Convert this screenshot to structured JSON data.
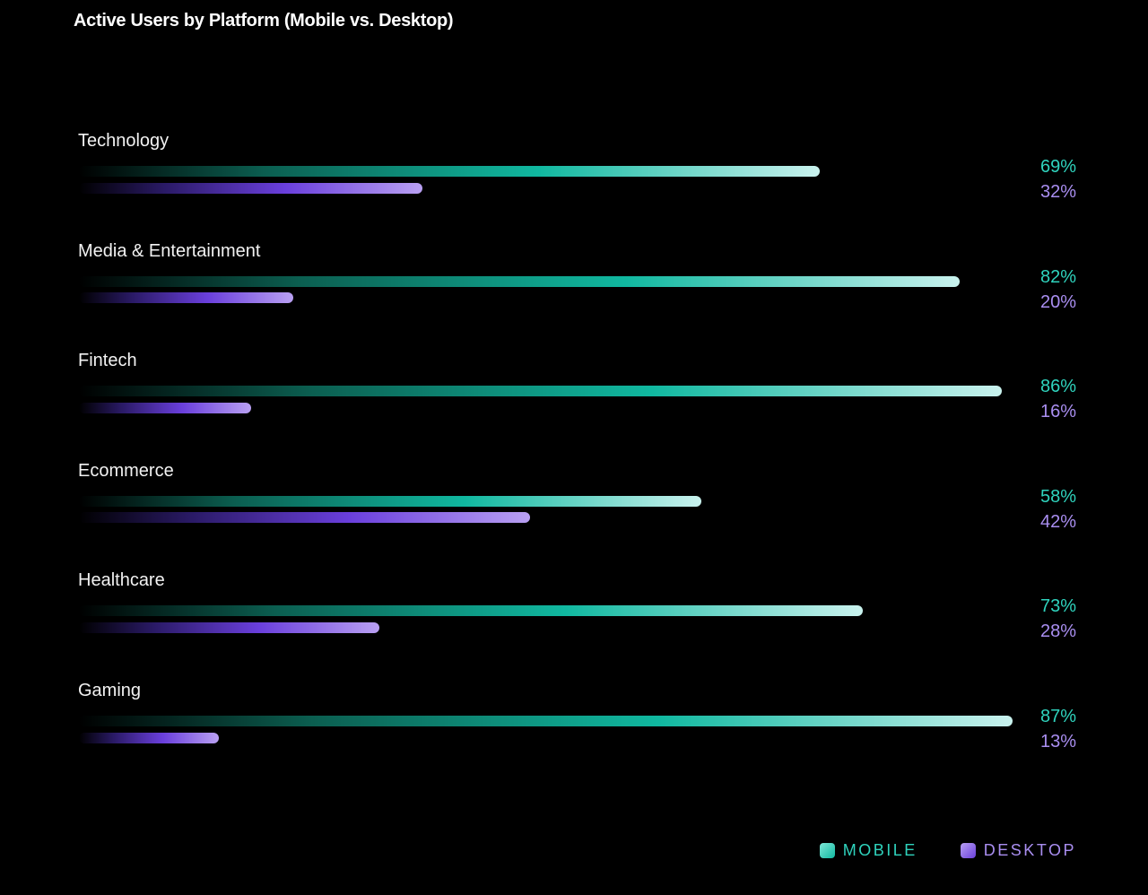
{
  "chart_data": {
    "type": "bar",
    "orientation": "horizontal",
    "title": "Active Users by Platform (Mobile vs. Desktop)",
    "categories": [
      "Technology",
      "Media & Entertainment",
      "Fintech",
      "Ecommerce",
      "Healthcare",
      "Gaming"
    ],
    "series": [
      {
        "name": "MOBILE",
        "values": [
          69,
          82,
          86,
          58,
          73,
          87
        ],
        "labels": [
          "69%",
          "82%",
          "86%",
          "58%",
          "73%",
          "87%"
        ],
        "color": "#10b8a0"
      },
      {
        "name": "DESKTOP",
        "values": [
          32,
          20,
          16,
          42,
          28,
          13
        ],
        "labels": [
          "32%",
          "20%",
          "16%",
          "42%",
          "28%",
          "13%"
        ],
        "color": "#6a3fdc"
      }
    ],
    "xlim": [
      0,
      100
    ],
    "grid": false,
    "legend": "bottom-right"
  }
}
